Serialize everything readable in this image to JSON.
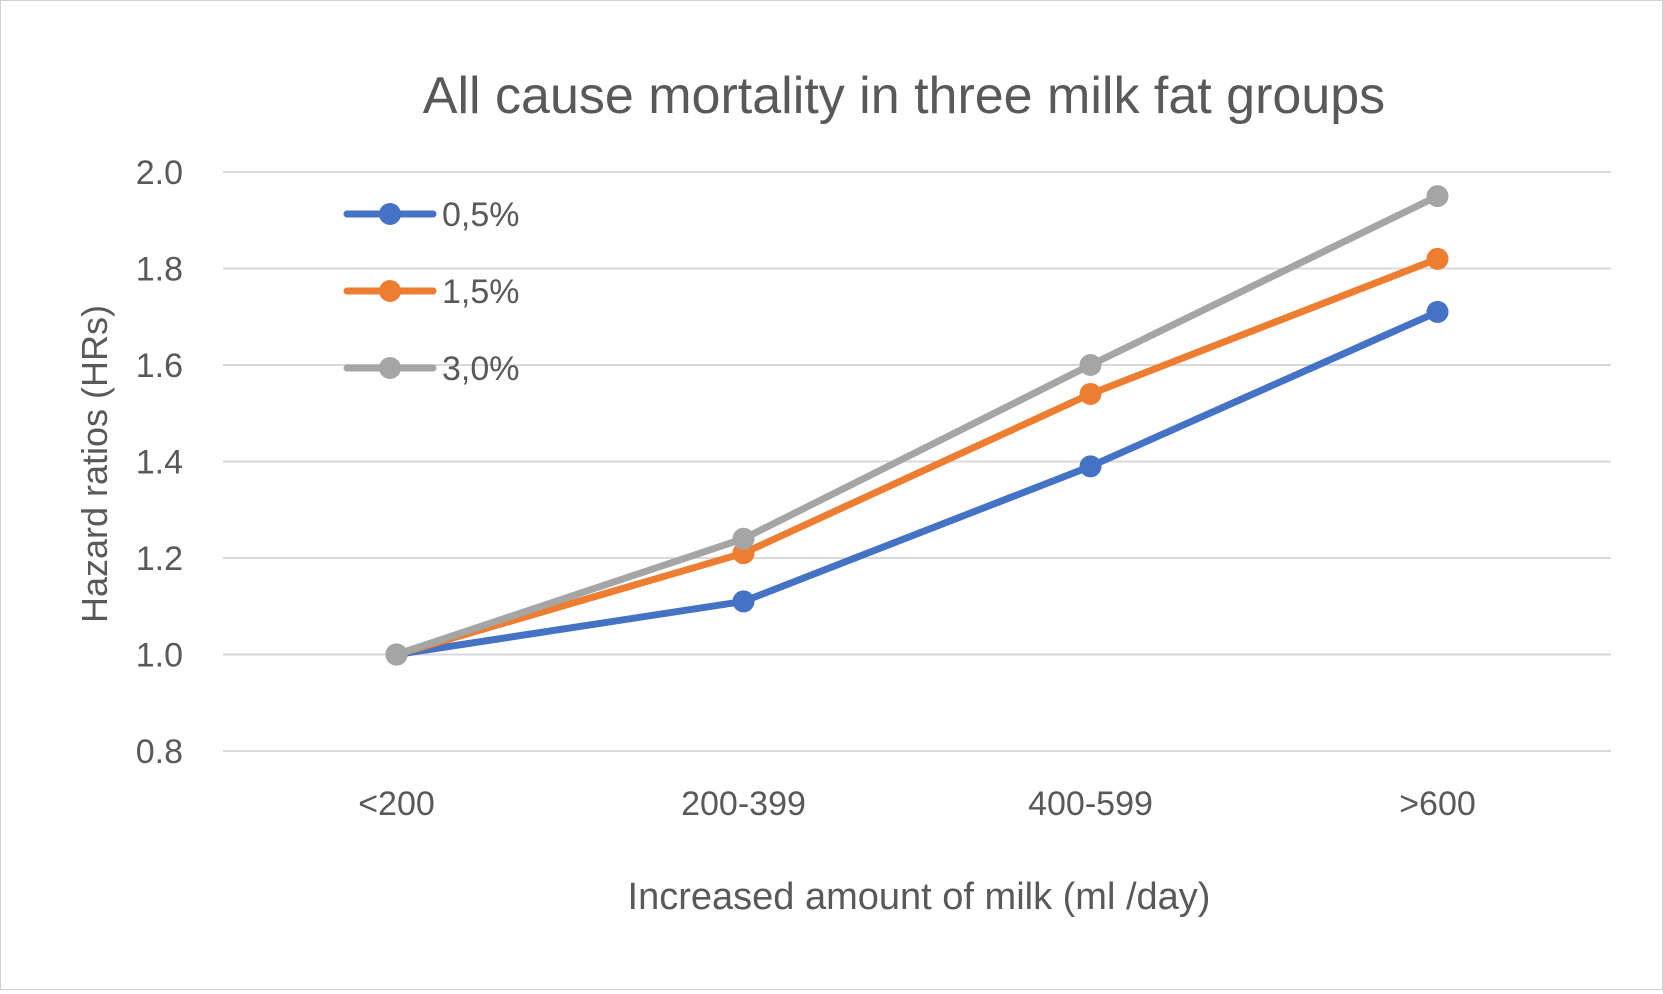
{
  "chart_data": {
    "type": "line",
    "title": "All cause mortality in three milk fat groups",
    "xlabel": "Increased amount of milk (ml /day)",
    "ylabel": "Hazard ratios (HRs)",
    "categories": [
      "<200",
      "200-399",
      "400-599",
      ">600"
    ],
    "ylim": [
      0.8,
      2.0
    ],
    "yticks": [
      "0.8",
      "1.0",
      "1.2",
      "1.4",
      "1.6",
      "1.8",
      "2.0"
    ],
    "grid": true,
    "legend_position": "top-left",
    "series": [
      {
        "name": "0,5%",
        "color": "#4472c4",
        "values": [
          1.0,
          1.11,
          1.39,
          1.71
        ]
      },
      {
        "name": "1,5%",
        "color": "#ed7d31",
        "values": [
          1.0,
          1.21,
          1.54,
          1.82
        ]
      },
      {
        "name": "3,0%",
        "color": "#a5a5a5",
        "values": [
          1.0,
          1.24,
          1.6,
          1.95
        ]
      }
    ]
  }
}
